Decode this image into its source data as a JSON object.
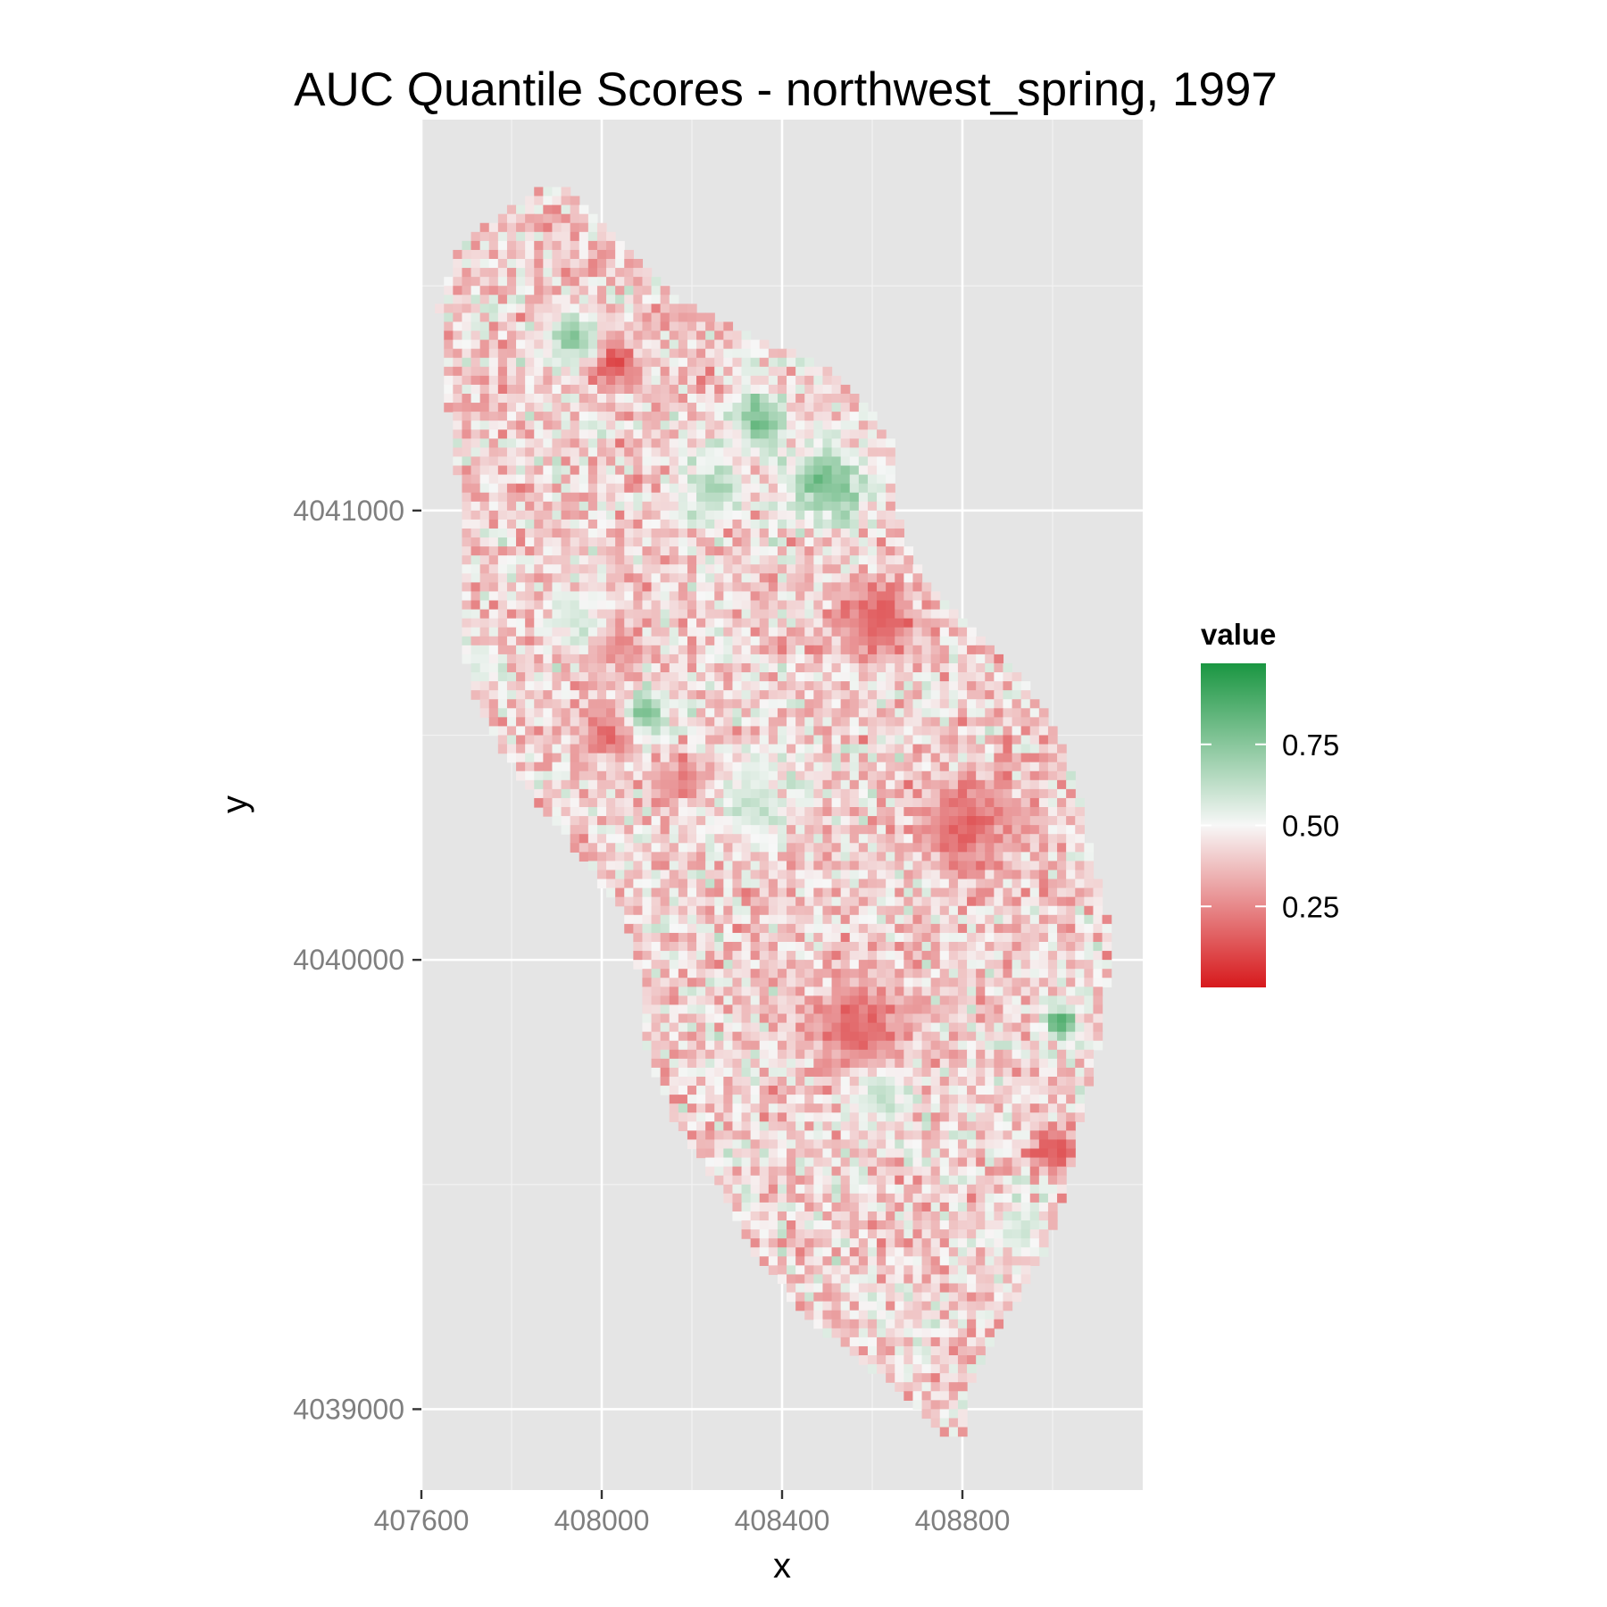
{
  "chart_data": {
    "type": "heatmap",
    "title": "AUC Quantile Scores - northwest_spring, 1997",
    "xlabel": "x",
    "ylabel": "y",
    "xlim": [
      407600,
      409200
    ],
    "ylim": [
      4038820,
      4041870
    ],
    "x_ticks": [
      407600,
      408000,
      408400,
      408800
    ],
    "x_tick_labels": [
      "407600",
      "408000",
      "408400",
      "408800"
    ],
    "y_ticks": [
      4039000,
      4040000,
      4041000
    ],
    "y_tick_labels": [
      "4039000",
      "4040000",
      "4041000"
    ],
    "grid": true,
    "cell_size": 20,
    "legend": {
      "title": "value",
      "position": "right",
      "range": [
        0,
        1
      ],
      "breaks": [
        0.25,
        0.5,
        0.75
      ],
      "break_labels": [
        "0.25",
        "0.50",
        "0.75"
      ],
      "colors": {
        "low": "#d7191c",
        "mid": "#f7f7f7",
        "high": "#1a9641"
      }
    },
    "outline_y": [
      4041710,
      4041600,
      4041450,
      4041300,
      4041150,
      4041000,
      4040850,
      4040700,
      4040550,
      4040400,
      4040250,
      4040100,
      4039950,
      4039800,
      4039650,
      4039500,
      4039350,
      4039200,
      4039050,
      4038950
    ],
    "outline_x_min": [
      407850,
      407690,
      407640,
      407650,
      407670,
      407690,
      407690,
      407690,
      407730,
      407820,
      407940,
      408050,
      408090,
      408100,
      408160,
      408260,
      408340,
      408460,
      408650,
      408760
    ],
    "outline_x_max": [
      407930,
      408030,
      408200,
      408530,
      408650,
      408650,
      408710,
      408870,
      408990,
      409050,
      409080,
      409120,
      409120,
      409100,
      409060,
      409030,
      408980,
      408890,
      408810,
      408800
    ],
    "hotspots": [
      {
        "x": 408020,
        "y": 4041330,
        "r": 60,
        "v": 0.05
      },
      {
        "x": 408570,
        "y": 4039850,
        "r": 110,
        "v": 0.12
      },
      {
        "x": 408610,
        "y": 4040750,
        "r": 90,
        "v": 0.12
      },
      {
        "x": 408810,
        "y": 4040300,
        "r": 110,
        "v": 0.15
      },
      {
        "x": 409000,
        "y": 4039580,
        "r": 50,
        "v": 0.05
      },
      {
        "x": 408020,
        "y": 4040500,
        "r": 60,
        "v": 0.1
      },
      {
        "x": 408180,
        "y": 4040400,
        "r": 60,
        "v": 0.2
      },
      {
        "x": 408030,
        "y": 4040700,
        "r": 60,
        "v": 0.15
      },
      {
        "x": 408350,
        "y": 4041200,
        "r": 60,
        "v": 0.88
      },
      {
        "x": 408500,
        "y": 4041060,
        "r": 80,
        "v": 0.88
      },
      {
        "x": 408100,
        "y": 4040550,
        "r": 50,
        "v": 0.85
      },
      {
        "x": 409020,
        "y": 4039860,
        "r": 40,
        "v": 0.97
      },
      {
        "x": 407940,
        "y": 4041380,
        "r": 60,
        "v": 0.78
      },
      {
        "x": 408240,
        "y": 4041050,
        "r": 70,
        "v": 0.72
      },
      {
        "x": 408330,
        "y": 4040350,
        "r": 80,
        "v": 0.65
      },
      {
        "x": 408620,
        "y": 4039700,
        "r": 70,
        "v": 0.65
      },
      {
        "x": 407950,
        "y": 4040750,
        "r": 70,
        "v": 0.6
      },
      {
        "x": 408920,
        "y": 4039400,
        "r": 60,
        "v": 0.6
      },
      {
        "x": 407720,
        "y": 4040650,
        "r": 50,
        "v": 0.6
      }
    ]
  }
}
